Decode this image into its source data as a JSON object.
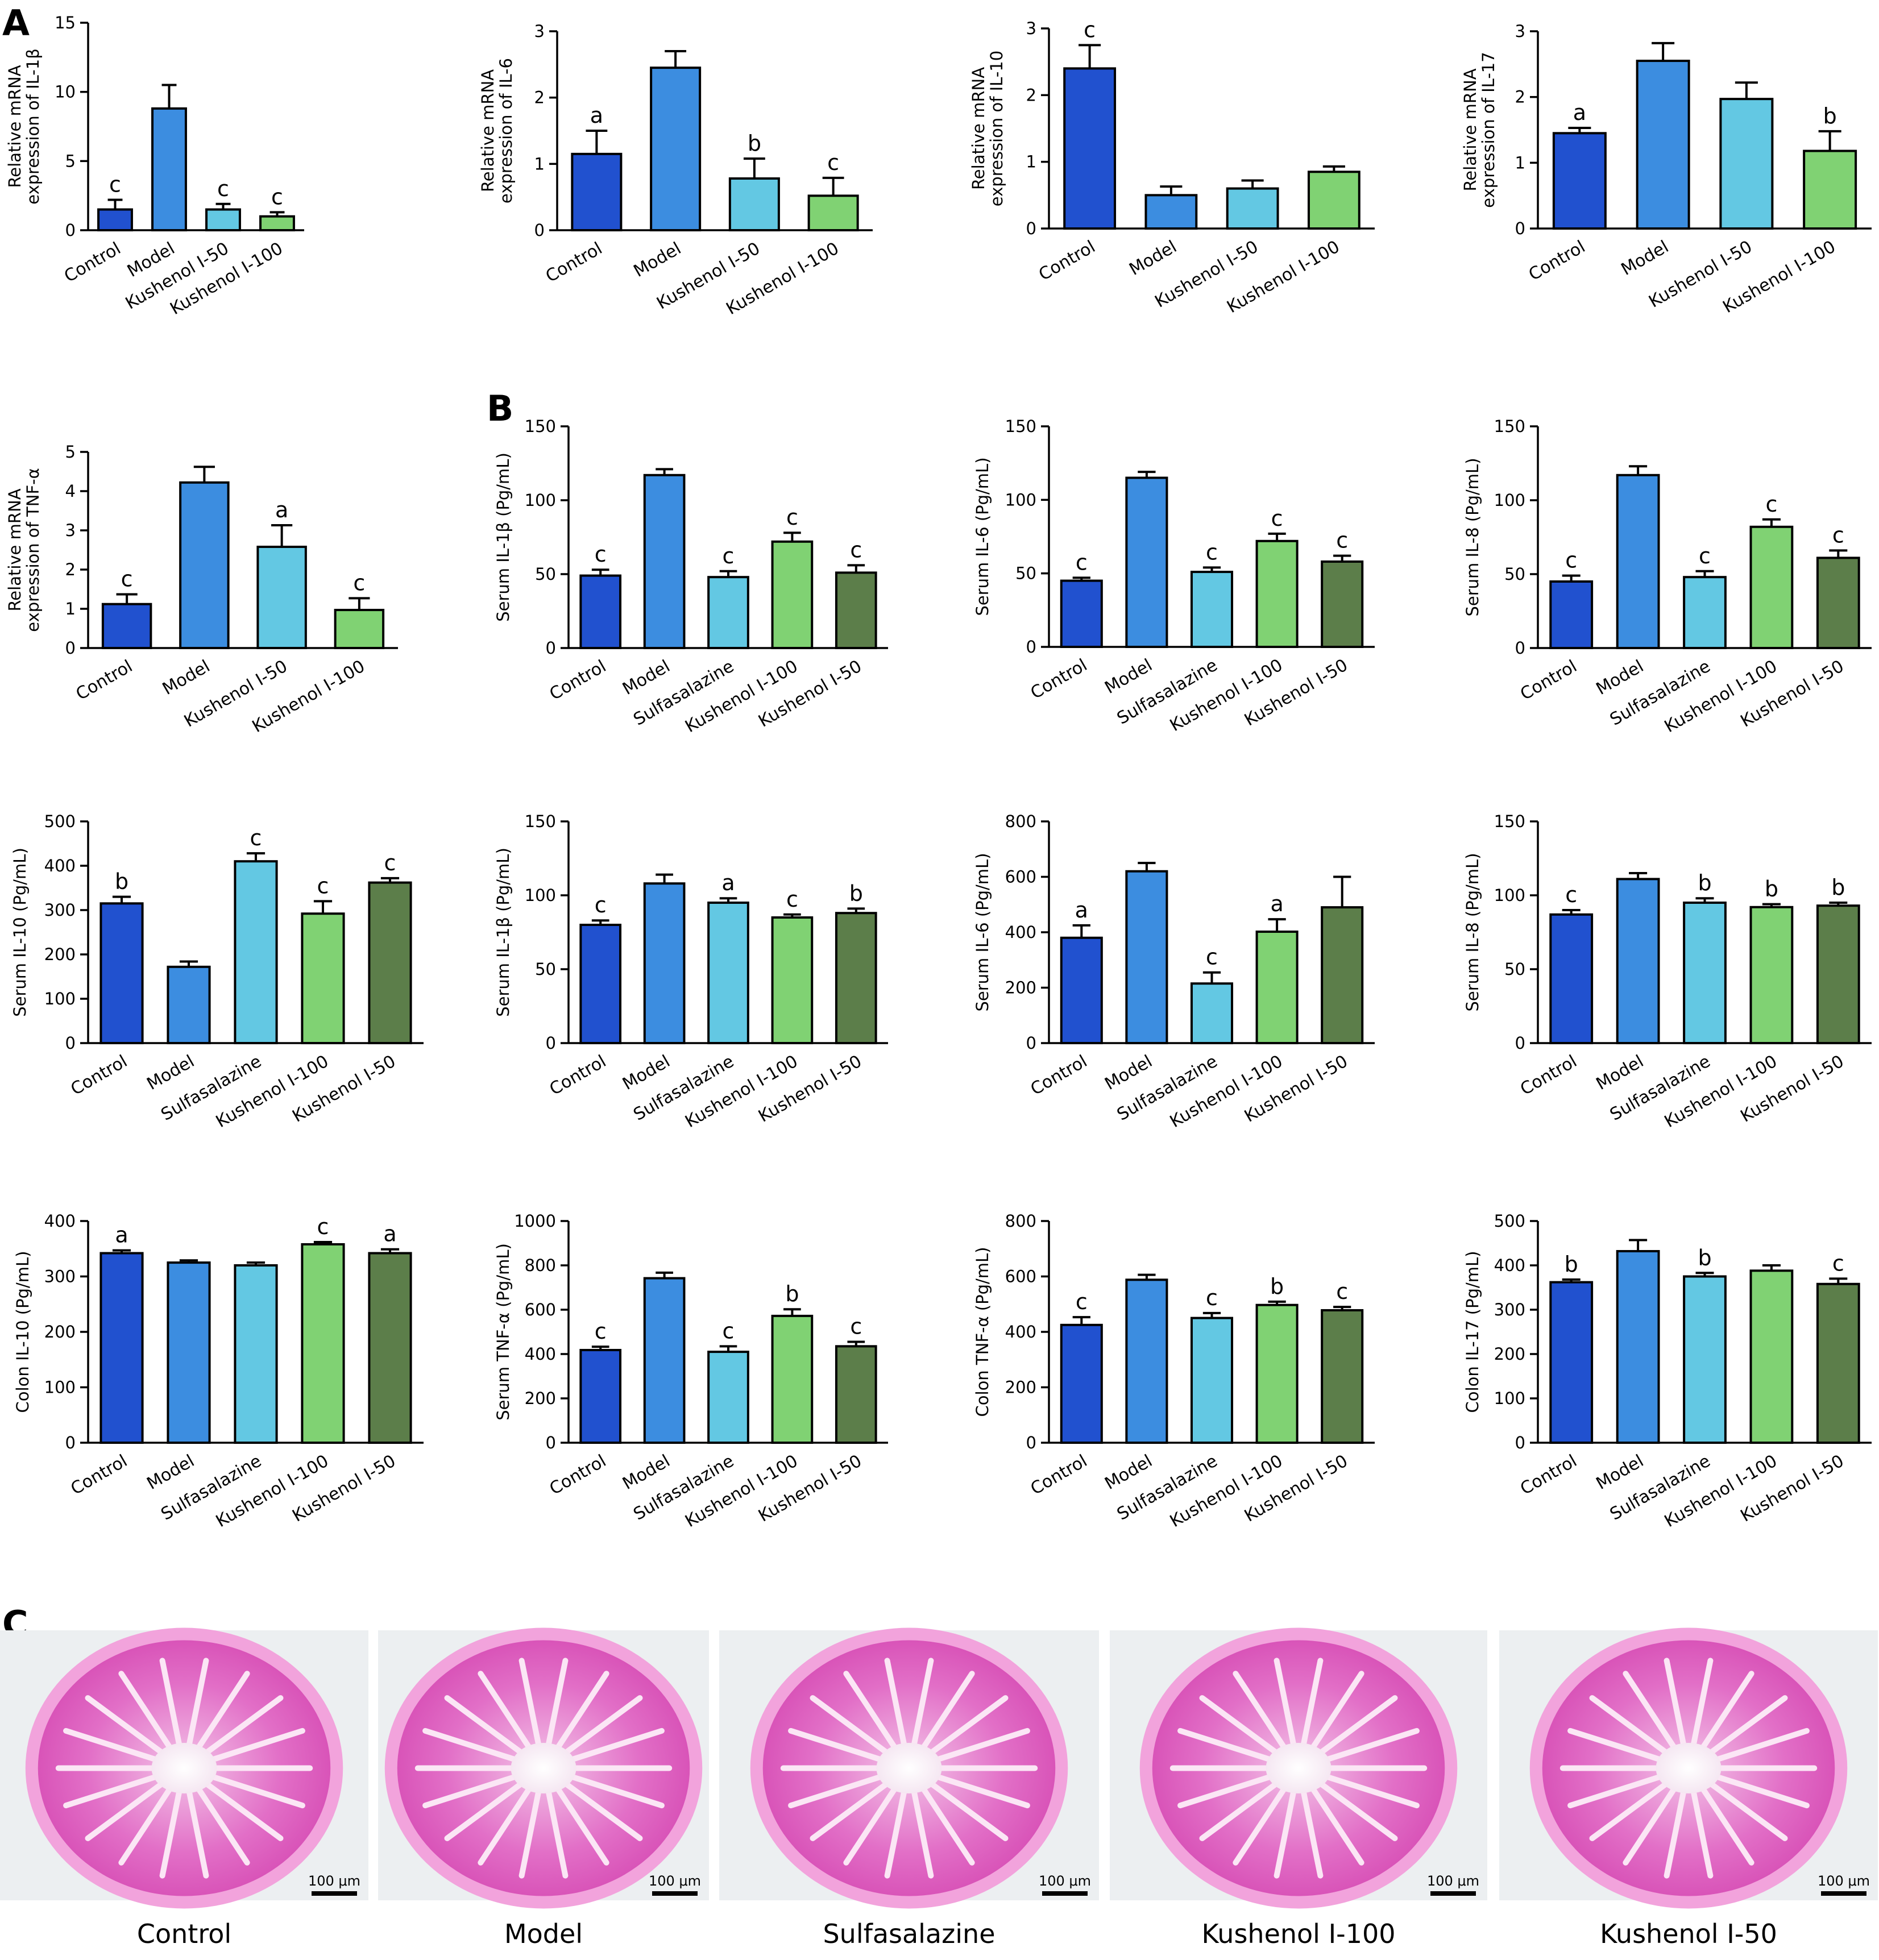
{
  "panel_labels": {
    "A": "A",
    "B": "B",
    "C": "C"
  },
  "colors": {
    "Control": "#2151cf",
    "Model": "#3c8de0",
    "Sulfasalazine": "#63c8e3",
    "Kushenol I-100": "#80d273",
    "Kushenol I-50": "#5c7e4a",
    "Kushenol I-50 (mRNA)": "#63c8e3",
    "Kushenol I-100 (mRNA)": "#80d273"
  },
  "chart_data": [
    {
      "id": "il1b-mrna",
      "type": "bar",
      "ylabel": "Relative mRNA expression of IL-1β",
      "ylim": [
        0,
        15
      ],
      "yticks": [
        0,
        5,
        10,
        15
      ],
      "categories": [
        "Control",
        "Model",
        "Kushenol I-50",
        "Kushenol I-100"
      ],
      "values": [
        1.5,
        8.8,
        1.5,
        1.0
      ],
      "errors": [
        0.7,
        1.7,
        0.4,
        0.3
      ],
      "sig": [
        "c",
        "",
        "c",
        "c"
      ],
      "color_keys": [
        "Control",
        "Model",
        "Kushenol I-50 (mRNA)",
        "Kushenol I-100 (mRNA)"
      ]
    },
    {
      "id": "il6-mrna",
      "type": "bar",
      "ylabel": "Relative mRNA expression of IL-6",
      "ylim": [
        0,
        3
      ],
      "yticks": [
        0,
        1,
        2,
        3
      ],
      "categories": [
        "Control",
        "Model",
        "Kushenol I-50",
        "Kushenol I-100"
      ],
      "values": [
        1.15,
        2.45,
        0.78,
        0.52
      ],
      "errors": [
        0.35,
        0.25,
        0.3,
        0.27
      ],
      "sig": [
        "a",
        "",
        "b",
        "c"
      ],
      "color_keys": [
        "Control",
        "Model",
        "Kushenol I-50 (mRNA)",
        "Kushenol I-100 (mRNA)"
      ]
    },
    {
      "id": "il10-mrna",
      "type": "bar",
      "ylabel": "Relative mRNA expression of IL-10",
      "ylim": [
        0,
        3
      ],
      "yticks": [
        0,
        1,
        2,
        3
      ],
      "categories": [
        "Control",
        "Model",
        "Kushenol I-50",
        "Kushenol I-100"
      ],
      "values": [
        2.4,
        0.5,
        0.6,
        0.85
      ],
      "errors": [
        0.35,
        0.13,
        0.12,
        0.08
      ],
      "sig": [
        "c",
        "",
        "",
        ""
      ],
      "color_keys": [
        "Control",
        "Model",
        "Kushenol I-50 (mRNA)",
        "Kushenol I-100 (mRNA)"
      ]
    },
    {
      "id": "il17-mrna",
      "type": "bar",
      "ylabel": "Relative mRNA expression of IL-17",
      "ylim": [
        0,
        3
      ],
      "yticks": [
        0,
        1,
        2,
        3
      ],
      "categories": [
        "Control",
        "Model",
        "Kushenol I-50",
        "Kushenol I-100"
      ],
      "values": [
        1.45,
        2.55,
        1.97,
        1.18
      ],
      "errors": [
        0.08,
        0.27,
        0.25,
        0.3
      ],
      "sig": [
        "a",
        "",
        "",
        "b"
      ],
      "color_keys": [
        "Control",
        "Model",
        "Kushenol I-50 (mRNA)",
        "Kushenol I-100 (mRNA)"
      ]
    },
    {
      "id": "tnfa-mrna",
      "type": "bar",
      "ylabel": "Relative mRNA expression of TNF-α",
      "ylim": [
        0,
        5
      ],
      "yticks": [
        0,
        1,
        2,
        3,
        4,
        5
      ],
      "categories": [
        "Control",
        "Model",
        "Kushenol I-50",
        "Kushenol I-100"
      ],
      "values": [
        1.12,
        4.22,
        2.58,
        0.97
      ],
      "errors": [
        0.25,
        0.4,
        0.55,
        0.3
      ],
      "sig": [
        "c",
        "",
        "a",
        "c"
      ],
      "color_keys": [
        "Control",
        "Model",
        "Kushenol I-50 (mRNA)",
        "Kushenol I-100 (mRNA)"
      ]
    },
    {
      "id": "serum-il1b-1",
      "type": "bar",
      "ylabel": "Serum IL-1β (Pg/mL)",
      "ylim": [
        0,
        150
      ],
      "yticks": [
        0,
        50,
        100,
        150
      ],
      "categories": [
        "Control",
        "Model",
        "Sulfasalazine",
        "Kushenol I-100",
        "Kushenol I-50"
      ],
      "values": [
        49,
        117,
        48,
        72,
        51
      ],
      "errors": [
        4,
        4,
        4,
        6,
        5
      ],
      "sig": [
        "c",
        "",
        "c",
        "c",
        "c"
      ],
      "color_keys": [
        "Control",
        "Model",
        "Sulfasalazine",
        "Kushenol I-100",
        "Kushenol I-50"
      ]
    },
    {
      "id": "serum-il6-1",
      "type": "bar",
      "ylabel": "Serum IL-6 (Pg/mL)",
      "ylim": [
        0,
        150
      ],
      "yticks": [
        0,
        50,
        100,
        150
      ],
      "categories": [
        "Control",
        "Model",
        "Sulfasalazine",
        "Kushenol I-100",
        "Kushenol I-50"
      ],
      "values": [
        45,
        115,
        51,
        72,
        58
      ],
      "errors": [
        2,
        4,
        3,
        5,
        4
      ],
      "sig": [
        "c",
        "",
        "c",
        "c",
        "c"
      ],
      "color_keys": [
        "Control",
        "Model",
        "Sulfasalazine",
        "Kushenol I-100",
        "Kushenol I-50"
      ]
    },
    {
      "id": "serum-il8-1",
      "type": "bar",
      "ylabel": "Serum IL-8 (Pg/mL)",
      "ylim": [
        0,
        150
      ],
      "yticks": [
        0,
        50,
        100,
        150
      ],
      "categories": [
        "Control",
        "Model",
        "Sulfasalazine",
        "Kushenol I-100",
        "Kushenol I-50"
      ],
      "values": [
        45,
        117,
        48,
        82,
        61
      ],
      "errors": [
        4,
        6,
        4,
        5,
        5
      ],
      "sig": [
        "c",
        "",
        "c",
        "c",
        "c"
      ],
      "color_keys": [
        "Control",
        "Model",
        "Sulfasalazine",
        "Kushenol I-100",
        "Kushenol I-50"
      ]
    },
    {
      "id": "serum-il10",
      "type": "bar",
      "ylabel": "Serum IL-10 (Pg/mL)",
      "ylim": [
        0,
        500
      ],
      "yticks": [
        0,
        100,
        200,
        300,
        400,
        500
      ],
      "categories": [
        "Control",
        "Model",
        "Sulfasalazine",
        "Kushenol I-100",
        "Kushenol I-50"
      ],
      "values": [
        315,
        172,
        410,
        292,
        362
      ],
      "errors": [
        15,
        12,
        18,
        28,
        10
      ],
      "sig": [
        "b",
        "",
        "c",
        "c",
        "c"
      ],
      "color_keys": [
        "Control",
        "Model",
        "Sulfasalazine",
        "Kushenol I-100",
        "Kushenol I-50"
      ]
    },
    {
      "id": "serum-il1b-2",
      "type": "bar",
      "ylabel": "Serum IL-1β (Pg/mL)",
      "ylim": [
        0,
        150
      ],
      "yticks": [
        0,
        50,
        100,
        150
      ],
      "categories": [
        "Control",
        "Model",
        "Sulfasalazine",
        "Kushenol I-100",
        "Kushenol I-50"
      ],
      "values": [
        80,
        108,
        95,
        85,
        88
      ],
      "errors": [
        3,
        6,
        3,
        2,
        3
      ],
      "sig": [
        "c",
        "",
        "a",
        "c",
        "b"
      ],
      "color_keys": [
        "Control",
        "Model",
        "Sulfasalazine",
        "Kushenol I-100",
        "Kushenol I-50"
      ]
    },
    {
      "id": "serum-il6-2",
      "type": "bar",
      "ylabel": "Serum IL-6 (Pg/mL)",
      "ylim": [
        0,
        800
      ],
      "yticks": [
        0,
        200,
        400,
        600,
        800
      ],
      "categories": [
        "Control",
        "Model",
        "Sulfasalazine",
        "Kushenol I-100",
        "Kushenol I-50"
      ],
      "values": [
        380,
        620,
        215,
        402,
        490
      ],
      "errors": [
        45,
        30,
        40,
        45,
        110
      ],
      "sig": [
        "a",
        "",
        "c",
        "a",
        ""
      ],
      "color_keys": [
        "Control",
        "Model",
        "Sulfasalazine",
        "Kushenol I-100",
        "Kushenol I-50"
      ]
    },
    {
      "id": "serum-il8-2",
      "type": "bar",
      "ylabel": "Serum IL-8 (Pg/mL)",
      "ylim": [
        0,
        150
      ],
      "yticks": [
        0,
        50,
        100,
        150
      ],
      "categories": [
        "Control",
        "Model",
        "Sulfasalazine",
        "Kushenol I-100",
        "Kushenol I-50"
      ],
      "values": [
        87,
        111,
        95,
        92,
        93
      ],
      "errors": [
        3,
        4,
        3,
        2,
        2
      ],
      "sig": [
        "c",
        "",
        "b",
        "b",
        "b"
      ],
      "color_keys": [
        "Control",
        "Model",
        "Sulfasalazine",
        "Kushenol I-100",
        "Kushenol I-50"
      ]
    },
    {
      "id": "colon-il10",
      "type": "bar",
      "ylabel": "Colon IL-10 (Pg/mL)",
      "ylim": [
        0,
        400
      ],
      "yticks": [
        0,
        100,
        200,
        300,
        400
      ],
      "categories": [
        "Control",
        "Model",
        "Sulfasalazine",
        "Kushenol I-100",
        "Kushenol I-50"
      ],
      "values": [
        342,
        325,
        320,
        358,
        342
      ],
      "errors": [
        5,
        4,
        5,
        4,
        7
      ],
      "sig": [
        "a",
        "",
        "",
        "c",
        "a"
      ],
      "color_keys": [
        "Control",
        "Model",
        "Sulfasalazine",
        "Kushenol I-100",
        "Kushenol I-50"
      ]
    },
    {
      "id": "serum-tnfa",
      "type": "bar",
      "ylabel": "Serum TNF-α (Pg/mL)",
      "ylim": [
        0,
        1000
      ],
      "yticks": [
        0,
        200,
        400,
        600,
        800,
        1000
      ],
      "categories": [
        "Control",
        "Model",
        "Sulfasalazine",
        "Kushenol I-100",
        "Kushenol I-50"
      ],
      "values": [
        418,
        742,
        410,
        572,
        435
      ],
      "errors": [
        15,
        25,
        25,
        30,
        20
      ],
      "sig": [
        "c",
        "",
        "c",
        "b",
        "c"
      ],
      "color_keys": [
        "Control",
        "Model",
        "Sulfasalazine",
        "Kushenol I-100",
        "Kushenol I-50"
      ]
    },
    {
      "id": "colon-tnfa",
      "type": "bar",
      "ylabel": "Colon TNF-α (Pg/mL)",
      "ylim": [
        0,
        800
      ],
      "yticks": [
        0,
        200,
        400,
        600,
        800
      ],
      "categories": [
        "Control",
        "Model",
        "Sulfasalazine",
        "Kushenol I-100",
        "Kushenol I-50"
      ],
      "values": [
        425,
        588,
        450,
        497,
        478
      ],
      "errors": [
        28,
        18,
        18,
        12,
        12
      ],
      "sig": [
        "c",
        "",
        "c",
        "b",
        "c"
      ],
      "color_keys": [
        "Control",
        "Model",
        "Sulfasalazine",
        "Kushenol I-100",
        "Kushenol I-50"
      ]
    },
    {
      "id": "colon-il17",
      "type": "bar",
      "ylabel": "Colon IL-17 (Pg/mL)",
      "ylim": [
        0,
        500
      ],
      "yticks": [
        0,
        100,
        200,
        300,
        400,
        500
      ],
      "categories": [
        "Control",
        "Model",
        "Sulfasalazine",
        "Kushenol I-100",
        "Kushenol I-50"
      ],
      "values": [
        362,
        432,
        375,
        388,
        358
      ],
      "errors": [
        6,
        25,
        8,
        12,
        12
      ],
      "sig": [
        "b",
        "",
        "b",
        "",
        "c"
      ],
      "color_keys": [
        "Control",
        "Model",
        "Sulfasalazine",
        "Kushenol I-100",
        "Kushenol I-50"
      ]
    }
  ],
  "histology": {
    "labels": [
      "Control",
      "Model",
      "Sulfasalazine",
      "Kushenol I-100",
      "Kushenol I-50"
    ],
    "scale_bar": "100 μm"
  }
}
